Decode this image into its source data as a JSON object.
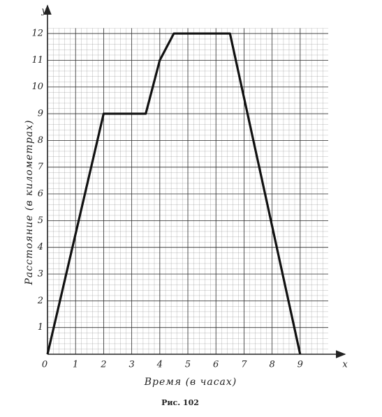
{
  "chart_data": {
    "type": "line",
    "x_axis_symbol": "x",
    "y_axis_symbol": "y",
    "xlabel": "Время (в часах)",
    "ylabel": "Расстояние (в километрах)",
    "caption": "Рис. 102",
    "x": [
      0,
      2,
      3.5,
      4,
      4.5,
      6.5,
      9
    ],
    "values": [
      0,
      9,
      9,
      11,
      12,
      12,
      0
    ],
    "color": "#111111",
    "xlim": [
      0,
      10
    ],
    "ylim": [
      0,
      12.2
    ],
    "xticks": [
      0,
      1,
      2,
      3,
      4,
      5,
      6,
      7,
      8,
      9
    ],
    "yticks": [
      1,
      2,
      3,
      4,
      5,
      6,
      7,
      8,
      9,
      10,
      11,
      12
    ],
    "grid": true
  }
}
